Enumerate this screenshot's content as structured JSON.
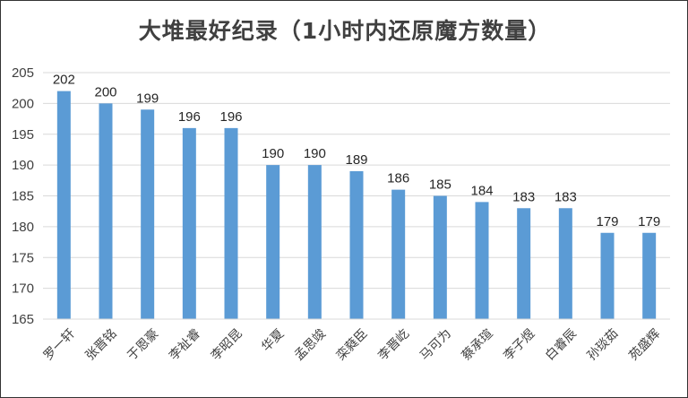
{
  "chart_data": {
    "type": "bar",
    "title": "大堆最好纪录（1小时内还原魔方数量）",
    "categories": [
      "罗一轩",
      "张晋铭",
      "于恩豪",
      "李祉睿",
      "李昭昆",
      "华夏",
      "孟思竣",
      "栾蕤臣",
      "李晋屹",
      "马可为",
      "蔡承瑄",
      "李子煜",
      "白睿辰",
      "孙琰茹",
      "苑盛辉"
    ],
    "values": [
      202,
      200,
      199,
      196,
      196,
      190,
      190,
      189,
      186,
      185,
      184,
      183,
      183,
      179,
      179
    ],
    "ylim": [
      165,
      205
    ],
    "yticks": [
      165,
      170,
      175,
      180,
      185,
      190,
      195,
      200,
      205
    ],
    "grid": true,
    "legend": "none",
    "bar_color": "#5B9BD5",
    "grid_color": "#D9D9D9"
  }
}
